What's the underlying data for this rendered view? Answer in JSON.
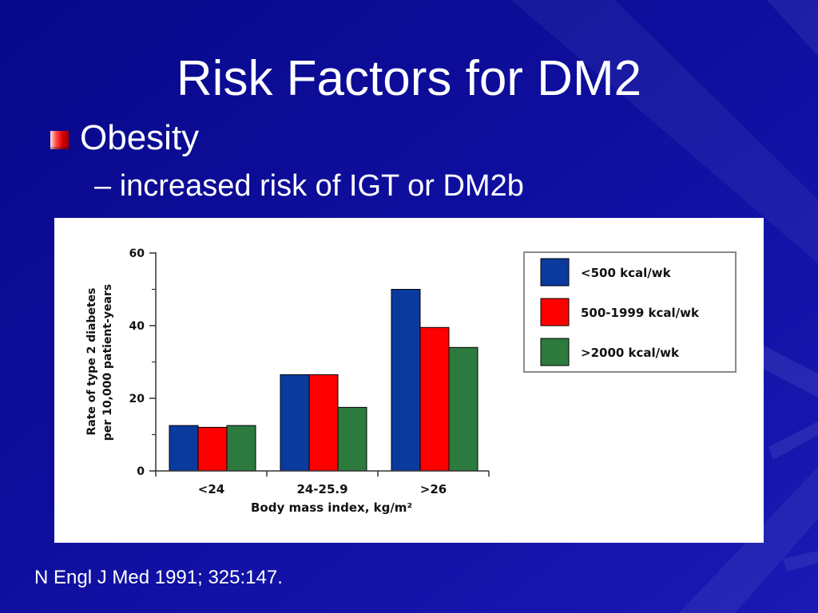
{
  "slide": {
    "title": "Risk Factors for DM2",
    "bullet": "Obesity",
    "sub_bullet_marker": "–",
    "sub_bullet": "increased risk of IGT or DM2b",
    "citation": "N Engl J Med 1991; 325:147."
  },
  "colors": {
    "background": "#0c0c94",
    "text": "#ffffff",
    "panel": "#ffffff"
  },
  "chart_data": {
    "type": "bar",
    "categories": [
      "<24",
      "24-25.9",
      ">26"
    ],
    "series": [
      {
        "name": "<500 kcal/wk",
        "color": "#0a3a9e",
        "values": [
          12.5,
          26.5,
          50
        ]
      },
      {
        "name": "500-1999 kcal/wk",
        "color": "#ff0000",
        "values": [
          12,
          26.5,
          39.5
        ]
      },
      {
        "name": ">2000 kcal/wk",
        "color": "#2d7a3e",
        "values": [
          12.5,
          17.5,
          34
        ]
      }
    ],
    "xlabel": "Body mass index, kg/m²",
    "ylabel": [
      "Rate of type 2 diabetes",
      "per 10,000 patient-years"
    ],
    "ylim": [
      0,
      60
    ],
    "yticks": [
      0,
      20,
      40,
      60
    ],
    "legend": "top-right",
    "grid": false
  }
}
